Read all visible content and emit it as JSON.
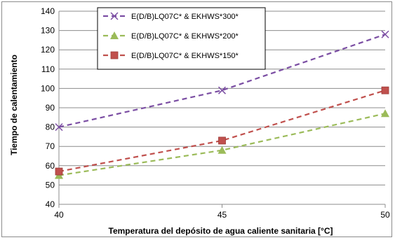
{
  "chart_data": {
    "type": "line",
    "xlabel": "Temperatura del depósito de agua caliente sanitaria [°C]",
    "ylabel": "Tiempo de calentamiento",
    "x": [
      40,
      45,
      50
    ],
    "xticks": [
      "40",
      "45",
      "50"
    ],
    "xlim": [
      40,
      50
    ],
    "ylim": [
      40,
      140
    ],
    "yticks": [
      "40",
      "50",
      "60",
      "70",
      "80",
      "90",
      "100",
      "110",
      "120",
      "130",
      "140"
    ],
    "grid": true,
    "legend_position": "top-center",
    "series": [
      {
        "name": "E(D/B)LQ07C* & EKHWS*300*",
        "values": [
          80,
          99,
          128
        ],
        "color": "#7B4EA3",
        "marker": "x"
      },
      {
        "name": "E(D/B)LQ07C* & EKHWS*200*",
        "values": [
          55,
          68,
          87
        ],
        "color": "#9BBB59",
        "marker": "triangle"
      },
      {
        "name": "E(D/B)LQ07C* & EKHWS*150*",
        "values": [
          57,
          73,
          99
        ],
        "color": "#C0504D",
        "marker": "square"
      }
    ]
  }
}
